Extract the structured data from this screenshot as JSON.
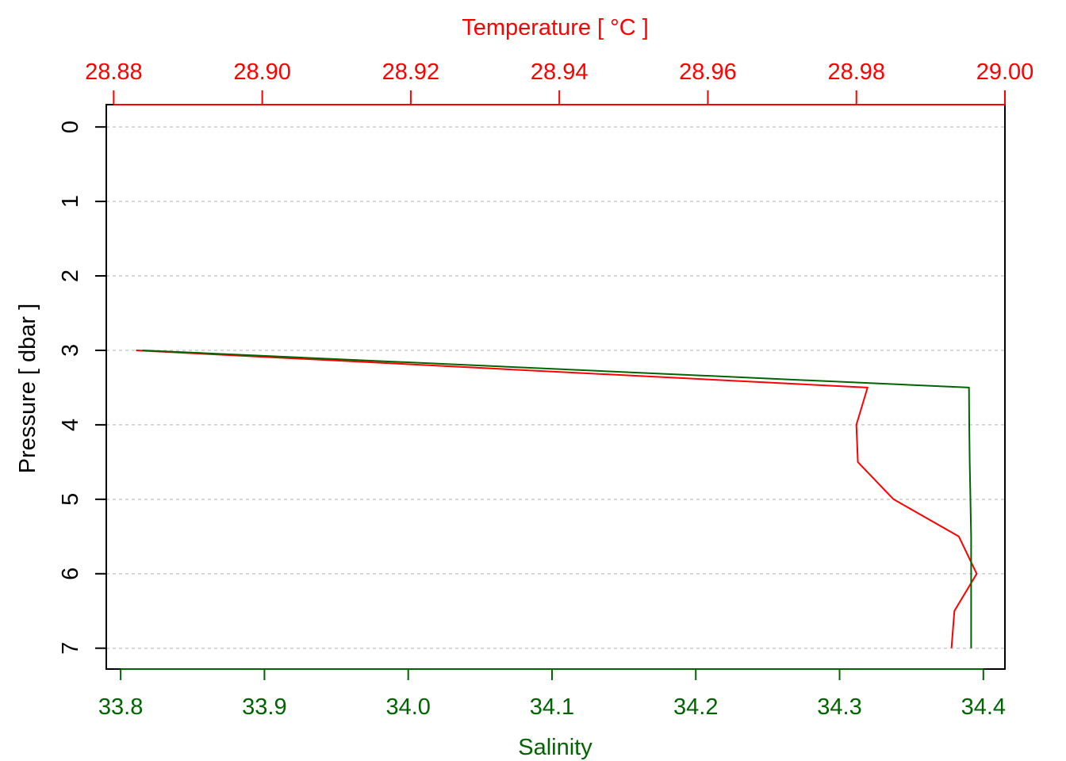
{
  "chart_data": {
    "type": "line",
    "y_axis": {
      "label": "Pressure [ dbar ]",
      "ticks": [
        "0",
        "1",
        "2",
        "3",
        "4",
        "5",
        "6",
        "7"
      ],
      "range": [
        7.28,
        -0.3
      ],
      "reversed": true,
      "gridlines": true
    },
    "x_axis_top": {
      "label": "Temperature [ °C ]",
      "ticks": [
        "28.88",
        "28.90",
        "28.92",
        "28.94",
        "28.96",
        "28.98",
        "29.00"
      ],
      "tick_values": [
        28.88,
        28.9,
        28.92,
        28.94,
        28.96,
        28.98,
        29.0
      ],
      "range": [
        28.879,
        29.0
      ],
      "color": "#ff0000"
    },
    "x_axis_bottom": {
      "label": "Salinity",
      "ticks": [
        "33.8",
        "33.9",
        "34.0",
        "34.1",
        "34.2",
        "34.3",
        "34.4"
      ],
      "tick_values": [
        33.8,
        33.9,
        34.0,
        34.1,
        34.2,
        34.3,
        34.4
      ],
      "range": [
        33.79,
        34.415
      ],
      "color": "#006400"
    },
    "series": [
      {
        "axis": "top",
        "color": "#ff0000",
        "pressure": [
          3.0,
          3.5,
          4.0,
          4.5,
          5.0,
          5.5,
          6.0,
          6.5,
          7.0
        ],
        "values": [
          28.883,
          28.9815,
          28.98,
          28.9802,
          28.985,
          28.9938,
          28.9962,
          28.9932,
          28.9928
        ]
      },
      {
        "axis": "bottom",
        "color": "#006400",
        "pressure": [
          3.0,
          3.5,
          4.0,
          4.5,
          5.0,
          5.5,
          6.0,
          6.5,
          7.0
        ],
        "values": [
          33.815,
          34.39,
          34.3902,
          34.3905,
          34.391,
          34.3915,
          34.3915,
          34.3915,
          34.3915
        ]
      }
    ]
  }
}
